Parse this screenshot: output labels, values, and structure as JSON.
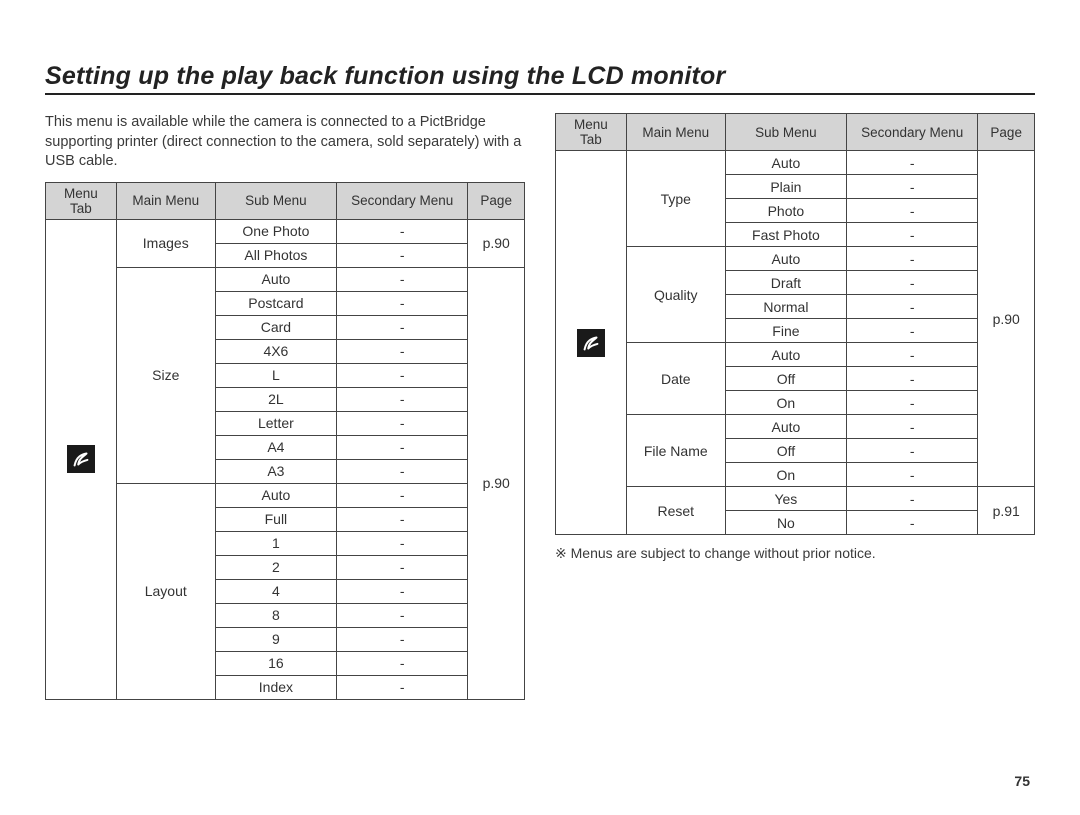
{
  "title": "Setting up the play back function using the LCD monitor",
  "intro": "This menu is available while the camera is connected to a PictBridge supporting printer (direct connection to the camera, sold separately) with a USB cable.",
  "footnote": "※ Menus are subject to change without prior notice.",
  "page_number": "75",
  "headers": {
    "menu_tab": "Menu Tab",
    "main_menu": "Main Menu",
    "sub_menu": "Sub Menu",
    "secondary_menu": "Secondary Menu",
    "page": "Page"
  },
  "icon_name": "pictbridge-icon",
  "col_widths_left": [
    "70",
    "98",
    "120",
    "130",
    "56"
  ],
  "col_widths_right": [
    "70",
    "98",
    "120",
    "130",
    "56"
  ],
  "left_table": {
    "groups": [
      {
        "main": "Images",
        "page": "p.90",
        "subs": [
          "One Photo",
          "All Photos"
        ]
      },
      {
        "main": "Size",
        "page": "p.90",
        "subs": [
          "Auto",
          "Postcard",
          "Card",
          "4X6",
          "L",
          "2L",
          "Letter",
          "A4",
          "A3"
        ]
      },
      {
        "main": "Layout",
        "page": null,
        "subs": [
          "Auto",
          "Full",
          "1",
          "2",
          "4",
          "8",
          "9",
          "16",
          "Index"
        ]
      }
    ],
    "page_span_start_group": 1
  },
  "right_table": {
    "groups": [
      {
        "main": "Type",
        "page": "p.90",
        "subs": [
          "Auto",
          "Plain",
          "Photo",
          "Fast Photo"
        ]
      },
      {
        "main": "Quality",
        "page": null,
        "subs": [
          "Auto",
          "Draft",
          "Normal",
          "Fine"
        ]
      },
      {
        "main": "Date",
        "page": null,
        "subs": [
          "Auto",
          "Off",
          "On"
        ]
      },
      {
        "main": "File Name",
        "page": null,
        "subs": [
          "Auto",
          "Off",
          "On"
        ]
      },
      {
        "main": "Reset",
        "page": "p.91",
        "subs": [
          "Yes",
          "No"
        ]
      }
    ],
    "page_span_groups_1": [
      0,
      1,
      2,
      3
    ],
    "page_span_groups_2": [
      4
    ]
  }
}
